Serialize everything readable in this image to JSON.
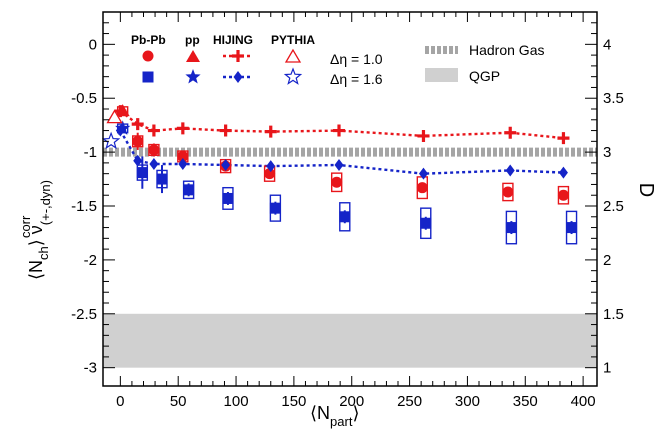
{
  "chart_data": {
    "type": "scatter",
    "x_axis": {
      "ticks": [
        "0",
        "50",
        "100",
        "150",
        "200",
        "250",
        "300",
        "350",
        "400"
      ],
      "range": [
        -15,
        412
      ]
    },
    "y_axis_left": {
      "ticks": [
        "0",
        "-0.5",
        "-1",
        "-1.5",
        "-2",
        "-2.5",
        "-3"
      ],
      "range": [
        -3.17,
        0.3
      ]
    },
    "y_axis_right": {
      "label": "D",
      "ticks": [
        "4",
        "3.5",
        "3",
        "2.5",
        "2",
        "1.5",
        "1"
      ]
    },
    "labels": {
      "y_main": "⟨N",
      "y_ch": "ch",
      "y_close": "⟩ ν",
      "y_sup": "corr",
      "y_sub": "(+-,dyn)",
      "x_main": "⟨N",
      "x_sub": "part",
      "x_close": "⟩"
    },
    "legend": {
      "columns": [
        "Pb-Pb",
        "pp",
        "HIJING",
        "PYTHIA"
      ],
      "rows": [
        "Δη = 1.0",
        "Δη = 1.6"
      ],
      "bands": [
        "Hadron Gas",
        "QGP"
      ]
    },
    "colors": {
      "red": "#e8161b",
      "blue": "#1524c8",
      "hadron_gas": "#a5a5a5",
      "qgp": "#d0d0d0"
    },
    "hadron_gas_level": -1.0,
    "qgp_band": [
      -2.5,
      -3.0
    ],
    "series": [
      {
        "name": "Pb-Pb Δη = 1.0",
        "marker": "circle",
        "color": "red",
        "x": [
          15,
          29,
          54,
          91,
          129,
          187,
          261,
          335,
          383
        ],
        "y": [
          -0.9,
          -0.98,
          -1.04,
          -1.13,
          -1.2,
          -1.28,
          -1.33,
          -1.37,
          -1.4
        ],
        "stat": [
          0.08,
          0.06,
          0.04,
          0.04,
          0.04,
          0.04,
          0.04,
          0.04,
          0.04
        ],
        "sys_box": [
          0.1,
          0.1,
          0.1,
          0.12,
          0.14,
          0.17,
          0.2,
          0.16,
          0.16
        ]
      },
      {
        "name": "Pb-Pb Δη = 1.6",
        "marker": "square",
        "color": "blue",
        "x": [
          19,
          36,
          59,
          93,
          134,
          194,
          264,
          338,
          390
        ],
        "y": [
          -1.19,
          -1.25,
          -1.35,
          -1.43,
          -1.52,
          -1.6,
          -1.66,
          -1.7,
          -1.7
        ],
        "stat": [
          0.15,
          0.13,
          0.06,
          0.06,
          0.06,
          0.06,
          0.06,
          0.06,
          0.06
        ],
        "sys_box": [
          0.14,
          0.16,
          0.16,
          0.2,
          0.24,
          0.26,
          0.28,
          0.3,
          0.3
        ]
      },
      {
        "name": "pp Δη = 1.0",
        "marker": "triangle",
        "color": "red",
        "x": [
          2
        ],
        "y": [
          -0.62
        ],
        "stat": [
          0.04
        ],
        "sys_box": [
          0.08
        ]
      },
      {
        "name": "pp Δη = 1.6",
        "marker": "star",
        "color": "blue",
        "x": [
          2
        ],
        "y": [
          -0.78
        ],
        "stat": [
          0.03
        ],
        "sys_box": [
          0.08
        ]
      },
      {
        "name": "HIJING Δη = 1.0",
        "marker": "cross",
        "color": "red",
        "line": "dotted",
        "x": [
          0,
          15,
          29,
          54,
          91,
          130,
          189,
          262,
          337,
          383
        ],
        "y": [
          -0.62,
          -0.74,
          -0.8,
          -0.78,
          -0.8,
          -0.81,
          -0.8,
          -0.85,
          -0.82,
          -0.87
        ]
      },
      {
        "name": "HIJING Δη = 1.6",
        "marker": "diamond",
        "color": "blue",
        "line": "dotted",
        "x": [
          0,
          15,
          29,
          54,
          91,
          130,
          189,
          262,
          337,
          383
        ],
        "y": [
          -0.8,
          -1.08,
          -1.11,
          -1.11,
          -1.12,
          -1.13,
          -1.12,
          -1.2,
          -1.17,
          -1.19
        ]
      },
      {
        "name": "PYTHIA Δη = 1.0",
        "marker": "triangle-open",
        "color": "red",
        "x": [
          -5
        ],
        "y": [
          -0.68
        ]
      },
      {
        "name": "PYTHIA Δη = 1.6",
        "marker": "star-open",
        "color": "blue",
        "x": [
          -8
        ],
        "y": [
          -0.9
        ]
      }
    ]
  }
}
